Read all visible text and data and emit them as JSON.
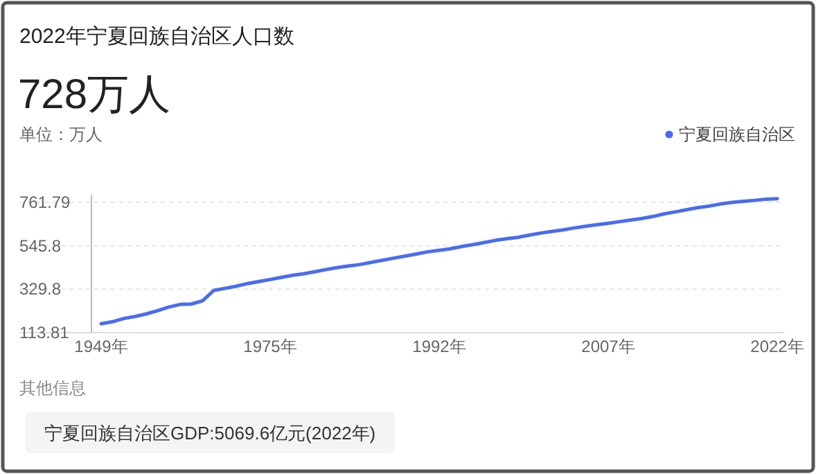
{
  "chart_data": {
    "type": "line",
    "title": "2022年宁夏回族自治区人口数",
    "subtitle": "728万人",
    "ylabel": "单位：万人",
    "categories": [
      "1949年",
      null,
      null,
      null,
      null,
      null,
      null,
      null,
      null,
      null,
      null,
      null,
      null,
      null,
      null,
      "1975年",
      null,
      null,
      null,
      null,
      null,
      null,
      null,
      null,
      null,
      null,
      null,
      null,
      null,
      null,
      "1992年",
      null,
      null,
      null,
      null,
      null,
      null,
      null,
      null,
      null,
      null,
      null,
      null,
      null,
      null,
      "2007年",
      null,
      null,
      null,
      null,
      null,
      null,
      null,
      null,
      null,
      null,
      null,
      null,
      null,
      null,
      "2022年"
    ],
    "series": [
      {
        "name": "宁夏回族自治区",
        "color": "#4a6cf0",
        "values": [
          158,
          168,
          184,
          194,
          207,
          223,
          241,
          254,
          256,
          272,
          324,
          334,
          345,
          358,
          368,
          378,
          389,
          399,
          407,
          417,
          428,
          438,
          446,
          453,
          464,
          474,
          485,
          495,
          505,
          516,
          523,
          531,
          542,
          552,
          562,
          573,
          581,
          588,
          599,
          609,
          617,
          625,
          635,
          643,
          651,
          658,
          666,
          674,
          682,
          692,
          705,
          715,
          726,
          736,
          744,
          754,
          762,
          767,
          772,
          778,
          780
        ]
      }
    ],
    "ylim": [
      113.81,
      800
    ],
    "yticks": [
      113.81,
      329.8,
      545.8,
      761.79
    ],
    "grid": "y",
    "legend": "top right",
    "marker": "none",
    "annotations": [
      "其他信息",
      "宁夏回族自治区GDP:5069.6亿元(2022年)"
    ]
  }
}
